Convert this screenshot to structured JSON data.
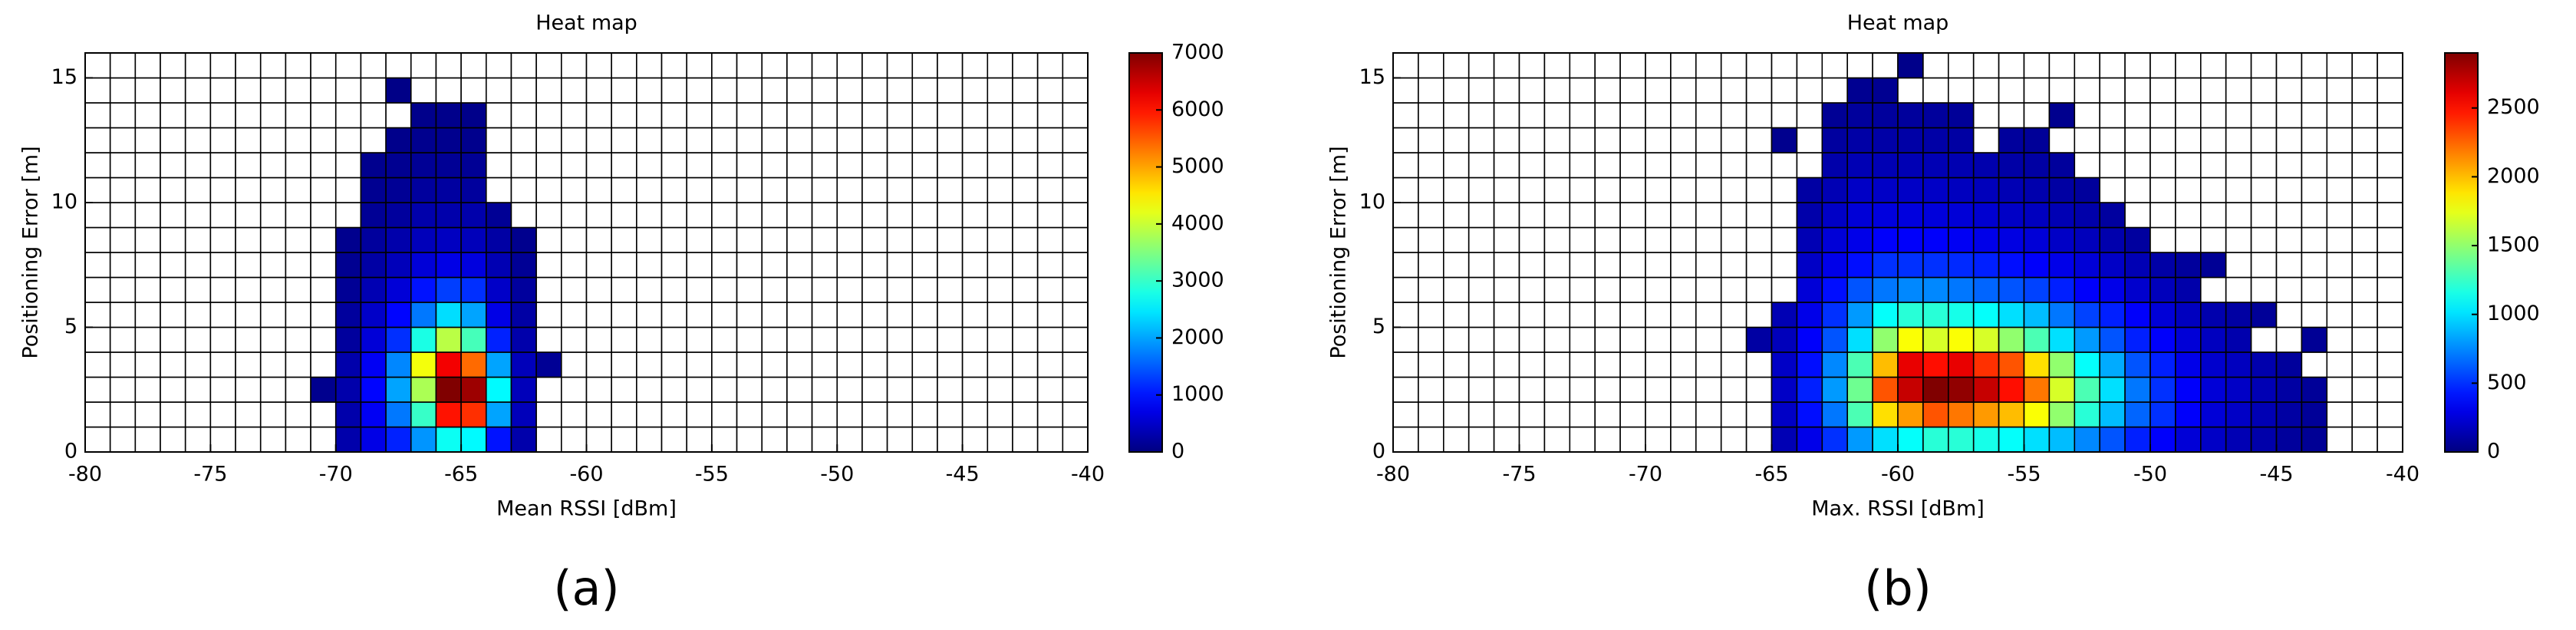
{
  "chart_data": [
    {
      "type": "heatmap",
      "title": "Heat map",
      "xlabel": "Mean RSSI [dBm]",
      "ylabel": "Positioning Error [m]",
      "caption": "(a)",
      "xlim": [
        -80,
        -40
      ],
      "ylim": [
        0,
        16
      ],
      "xticks": [
        -80,
        -75,
        -70,
        -65,
        -60,
        -55,
        -50,
        -45,
        -40
      ],
      "yticks": [
        0,
        5,
        10,
        15
      ],
      "colormap": "jet",
      "zero_color": "#ffffff",
      "clim": [
        0,
        7000
      ],
      "cticks": [
        0,
        1000,
        2000,
        3000,
        4000,
        5000,
        6000,
        7000
      ],
      "values": [
        [
          0,
          0,
          0,
          0,
          0,
          0,
          0,
          0,
          0,
          0,
          300,
          700,
          1100,
          1900,
          2700,
          2600,
          1000,
          300,
          0,
          0,
          0,
          0,
          0,
          0,
          0,
          0,
          0,
          0,
          0,
          0,
          0,
          0,
          0,
          0,
          0,
          0,
          0,
          0,
          0,
          0
        ],
        [
          0,
          0,
          0,
          0,
          0,
          0,
          0,
          0,
          0,
          0,
          300,
          800,
          1700,
          3000,
          6000,
          5800,
          2000,
          400,
          0,
          0,
          0,
          0,
          0,
          0,
          0,
          0,
          0,
          0,
          0,
          0,
          0,
          0,
          0,
          0,
          0,
          0,
          0,
          0,
          0,
          0
        ],
        [
          0,
          0,
          0,
          0,
          0,
          0,
          0,
          0,
          0,
          100,
          300,
          900,
          2000,
          3800,
          7000,
          6800,
          2600,
          400,
          0,
          0,
          0,
          0,
          0,
          0,
          0,
          0,
          0,
          0,
          0,
          0,
          0,
          0,
          0,
          0,
          0,
          0,
          0,
          0,
          0,
          0
        ],
        [
          0,
          0,
          0,
          0,
          0,
          0,
          0,
          0,
          0,
          0,
          300,
          800,
          1800,
          4300,
          6200,
          5400,
          2000,
          400,
          150,
          0,
          0,
          0,
          0,
          0,
          0,
          0,
          0,
          0,
          0,
          0,
          0,
          0,
          0,
          0,
          0,
          0,
          0,
          0,
          0,
          0
        ],
        [
          0,
          0,
          0,
          0,
          0,
          0,
          0,
          0,
          0,
          0,
          200,
          600,
          1200,
          2800,
          3900,
          3100,
          1100,
          300,
          0,
          0,
          0,
          0,
          0,
          0,
          0,
          0,
          0,
          0,
          0,
          0,
          0,
          0,
          0,
          0,
          0,
          0,
          0,
          0,
          0,
          0
        ],
        [
          0,
          0,
          0,
          0,
          0,
          0,
          0,
          0,
          0,
          0,
          200,
          500,
          900,
          1700,
          2400,
          2000,
          700,
          250,
          0,
          0,
          0,
          0,
          0,
          0,
          0,
          0,
          0,
          0,
          0,
          0,
          0,
          0,
          0,
          0,
          0,
          0,
          0,
          0,
          0,
          0
        ],
        [
          0,
          0,
          0,
          0,
          0,
          0,
          0,
          0,
          0,
          0,
          150,
          350,
          600,
          1000,
          1300,
          1200,
          500,
          200,
          0,
          0,
          0,
          0,
          0,
          0,
          0,
          0,
          0,
          0,
          0,
          0,
          0,
          0,
          0,
          0,
          0,
          0,
          0,
          0,
          0,
          0
        ],
        [
          0,
          0,
          0,
          0,
          0,
          0,
          0,
          0,
          0,
          0,
          120,
          250,
          400,
          600,
          700,
          650,
          350,
          150,
          0,
          0,
          0,
          0,
          0,
          0,
          0,
          0,
          0,
          0,
          0,
          0,
          0,
          0,
          0,
          0,
          0,
          0,
          0,
          0,
          0,
          0
        ],
        [
          0,
          0,
          0,
          0,
          0,
          0,
          0,
          0,
          0,
          0,
          100,
          200,
          300,
          400,
          450,
          400,
          250,
          100,
          0,
          0,
          0,
          0,
          0,
          0,
          0,
          0,
          0,
          0,
          0,
          0,
          0,
          0,
          0,
          0,
          0,
          0,
          0,
          0,
          0,
          0
        ],
        [
          0,
          0,
          0,
          0,
          0,
          0,
          0,
          0,
          0,
          0,
          0,
          150,
          200,
          300,
          300,
          300,
          150,
          0,
          0,
          0,
          0,
          0,
          0,
          0,
          0,
          0,
          0,
          0,
          0,
          0,
          0,
          0,
          0,
          0,
          0,
          0,
          0,
          0,
          0,
          0
        ],
        [
          0,
          0,
          0,
          0,
          0,
          0,
          0,
          0,
          0,
          0,
          0,
          120,
          150,
          200,
          220,
          200,
          0,
          0,
          0,
          0,
          0,
          0,
          0,
          0,
          0,
          0,
          0,
          0,
          0,
          0,
          0,
          0,
          0,
          0,
          0,
          0,
          0,
          0,
          0,
          0
        ],
        [
          0,
          0,
          0,
          0,
          0,
          0,
          0,
          0,
          0,
          0,
          0,
          100,
          120,
          150,
          150,
          150,
          0,
          0,
          0,
          0,
          0,
          0,
          0,
          0,
          0,
          0,
          0,
          0,
          0,
          0,
          0,
          0,
          0,
          0,
          0,
          0,
          0,
          0,
          0,
          0
        ],
        [
          0,
          0,
          0,
          0,
          0,
          0,
          0,
          0,
          0,
          0,
          0,
          0,
          80,
          100,
          100,
          90,
          0,
          0,
          0,
          0,
          0,
          0,
          0,
          0,
          0,
          0,
          0,
          0,
          0,
          0,
          0,
          0,
          0,
          0,
          0,
          0,
          0,
          0,
          0,
          0
        ],
        [
          0,
          0,
          0,
          0,
          0,
          0,
          0,
          0,
          0,
          0,
          0,
          0,
          0,
          80,
          80,
          70,
          0,
          0,
          0,
          0,
          0,
          0,
          0,
          0,
          0,
          0,
          0,
          0,
          0,
          0,
          0,
          0,
          0,
          0,
          0,
          0,
          0,
          0,
          0,
          0
        ],
        [
          0,
          0,
          0,
          0,
          0,
          0,
          0,
          0,
          0,
          0,
          0,
          0,
          50,
          0,
          0,
          0,
          0,
          0,
          0,
          0,
          0,
          0,
          0,
          0,
          0,
          0,
          0,
          0,
          0,
          0,
          0,
          0,
          0,
          0,
          0,
          0,
          0,
          0,
          0,
          0
        ],
        [
          0,
          0,
          0,
          0,
          0,
          0,
          0,
          0,
          0,
          0,
          0,
          0,
          0,
          0,
          0,
          0,
          0,
          0,
          0,
          0,
          0,
          0,
          0,
          0,
          0,
          0,
          0,
          0,
          0,
          0,
          0,
          0,
          0,
          0,
          0,
          0,
          0,
          0,
          0,
          0
        ]
      ]
    },
    {
      "type": "heatmap",
      "title": "Heat map",
      "xlabel": "Max. RSSI [dBm]",
      "ylabel": "Positioning Error [m]",
      "caption": "(b)",
      "xlim": [
        -80,
        -40
      ],
      "ylim": [
        0,
        16
      ],
      "xticks": [
        -80,
        -75,
        -70,
        -65,
        -60,
        -55,
        -50,
        -45,
        -40
      ],
      "yticks": [
        0,
        5,
        10,
        15
      ],
      "colormap": "jet",
      "zero_color": "#ffffff",
      "clim": [
        0,
        2900
      ],
      "cticks": [
        0,
        500,
        1000,
        1500,
        2000,
        2500
      ],
      "values": [
        [
          0,
          0,
          0,
          0,
          0,
          0,
          0,
          0,
          0,
          0,
          0,
          0,
          0,
          0,
          0,
          150,
          300,
          500,
          800,
          1000,
          1100,
          1200,
          1200,
          1150,
          1100,
          1000,
          900,
          750,
          600,
          450,
          350,
          250,
          200,
          150,
          120,
          80,
          60,
          0,
          0,
          0
        ],
        [
          0,
          0,
          0,
          0,
          0,
          0,
          0,
          0,
          0,
          0,
          0,
          0,
          0,
          0,
          0,
          200,
          400,
          700,
          1300,
          1900,
          2100,
          2300,
          2200,
          2100,
          2000,
          1800,
          1500,
          1200,
          900,
          650,
          500,
          350,
          250,
          200,
          150,
          100,
          70,
          0,
          0,
          0
        ],
        [
          0,
          0,
          0,
          0,
          0,
          0,
          0,
          0,
          0,
          0,
          0,
          0,
          0,
          0,
          0,
          200,
          450,
          800,
          1400,
          2300,
          2700,
          2900,
          2850,
          2700,
          2500,
          2200,
          1700,
          1300,
          1000,
          700,
          500,
          350,
          250,
          200,
          150,
          100,
          70,
          0,
          0,
          0
        ],
        [
          0,
          0,
          0,
          0,
          0,
          0,
          0,
          0,
          0,
          0,
          0,
          0,
          0,
          0,
          0,
          200,
          400,
          750,
          1300,
          2000,
          2600,
          2500,
          2600,
          2400,
          2300,
          1900,
          1500,
          1100,
          850,
          600,
          450,
          300,
          220,
          180,
          130,
          80,
          0,
          0,
          0,
          0
        ],
        [
          0,
          0,
          0,
          0,
          0,
          0,
          0,
          0,
          0,
          0,
          0,
          0,
          0,
          0,
          100,
          170,
          350,
          600,
          1000,
          1500,
          1800,
          1700,
          1800,
          1700,
          1500,
          1300,
          1000,
          800,
          600,
          450,
          350,
          250,
          180,
          130,
          0,
          0,
          60,
          0,
          0,
          0
        ],
        [
          0,
          0,
          0,
          0,
          0,
          0,
          0,
          0,
          0,
          0,
          0,
          0,
          0,
          0,
          0,
          150,
          300,
          500,
          800,
          1100,
          1200,
          1200,
          1150,
          1100,
          1000,
          900,
          700,
          550,
          450,
          350,
          250,
          180,
          130,
          100,
          70,
          0,
          0,
          0,
          0,
          0
        ],
        [
          0,
          0,
          0,
          0,
          0,
          0,
          0,
          0,
          0,
          0,
          0,
          0,
          0,
          0,
          0,
          0,
          250,
          400,
          600,
          700,
          750,
          750,
          700,
          650,
          600,
          550,
          450,
          350,
          300,
          220,
          170,
          120,
          0,
          0,
          0,
          0,
          0,
          0,
          0,
          0
        ],
        [
          0,
          0,
          0,
          0,
          0,
          0,
          0,
          0,
          0,
          0,
          0,
          0,
          0,
          0,
          0,
          0,
          200,
          300,
          400,
          500,
          500,
          500,
          480,
          450,
          400,
          350,
          300,
          250,
          200,
          150,
          110,
          80,
          60,
          0,
          0,
          0,
          0,
          0,
          0,
          0
        ],
        [
          0,
          0,
          0,
          0,
          0,
          0,
          0,
          0,
          0,
          0,
          0,
          0,
          0,
          0,
          0,
          0,
          150,
          250,
          300,
          350,
          350,
          350,
          330,
          300,
          280,
          250,
          200,
          170,
          130,
          90,
          0,
          0,
          0,
          0,
          0,
          0,
          0,
          0,
          0,
          0
        ],
        [
          0,
          0,
          0,
          0,
          0,
          0,
          0,
          0,
          0,
          0,
          0,
          0,
          0,
          0,
          0,
          0,
          120,
          200,
          250,
          270,
          270,
          260,
          250,
          230,
          200,
          180,
          150,
          120,
          90,
          0,
          0,
          0,
          0,
          0,
          0,
          0,
          0,
          0,
          0,
          0
        ],
        [
          0,
          0,
          0,
          0,
          0,
          0,
          0,
          0,
          0,
          0,
          0,
          0,
          0,
          0,
          0,
          0,
          100,
          150,
          200,
          200,
          200,
          200,
          180,
          170,
          150,
          130,
          100,
          80,
          0,
          0,
          0,
          0,
          0,
          0,
          0,
          0,
          0,
          0,
          0,
          0
        ],
        [
          0,
          0,
          0,
          0,
          0,
          0,
          0,
          0,
          0,
          0,
          0,
          0,
          0,
          0,
          0,
          0,
          0,
          120,
          150,
          150,
          150,
          150,
          140,
          130,
          110,
          100,
          80,
          0,
          0,
          0,
          0,
          0,
          0,
          0,
          0,
          0,
          0,
          0,
          0,
          0
        ],
        [
          0,
          0,
          0,
          0,
          0,
          0,
          0,
          0,
          0,
          0,
          0,
          0,
          0,
          0,
          0,
          40,
          0,
          90,
          110,
          110,
          110,
          110,
          100,
          0,
          80,
          70,
          0,
          0,
          0,
          0,
          0,
          0,
          0,
          0,
          0,
          0,
          0,
          0,
          0,
          0
        ],
        [
          0,
          0,
          0,
          0,
          0,
          0,
          0,
          0,
          0,
          0,
          0,
          0,
          0,
          0,
          0,
          0,
          0,
          60,
          80,
          80,
          80,
          80,
          70,
          0,
          0,
          0,
          40,
          0,
          0,
          0,
          0,
          0,
          0,
          0,
          0,
          0,
          0,
          0,
          0,
          0
        ],
        [
          0,
          0,
          0,
          0,
          0,
          0,
          0,
          0,
          0,
          0,
          0,
          0,
          0,
          0,
          0,
          0,
          0,
          0,
          50,
          50,
          0,
          0,
          0,
          0,
          0,
          0,
          0,
          0,
          0,
          0,
          0,
          0,
          0,
          0,
          0,
          0,
          0,
          0,
          0,
          0
        ],
        [
          0,
          0,
          0,
          0,
          0,
          0,
          0,
          0,
          0,
          0,
          0,
          0,
          0,
          0,
          0,
          0,
          0,
          0,
          0,
          0,
          30,
          0,
          0,
          0,
          0,
          0,
          0,
          0,
          0,
          0,
          0,
          0,
          0,
          0,
          0,
          0,
          0,
          0,
          0,
          0
        ]
      ]
    }
  ]
}
